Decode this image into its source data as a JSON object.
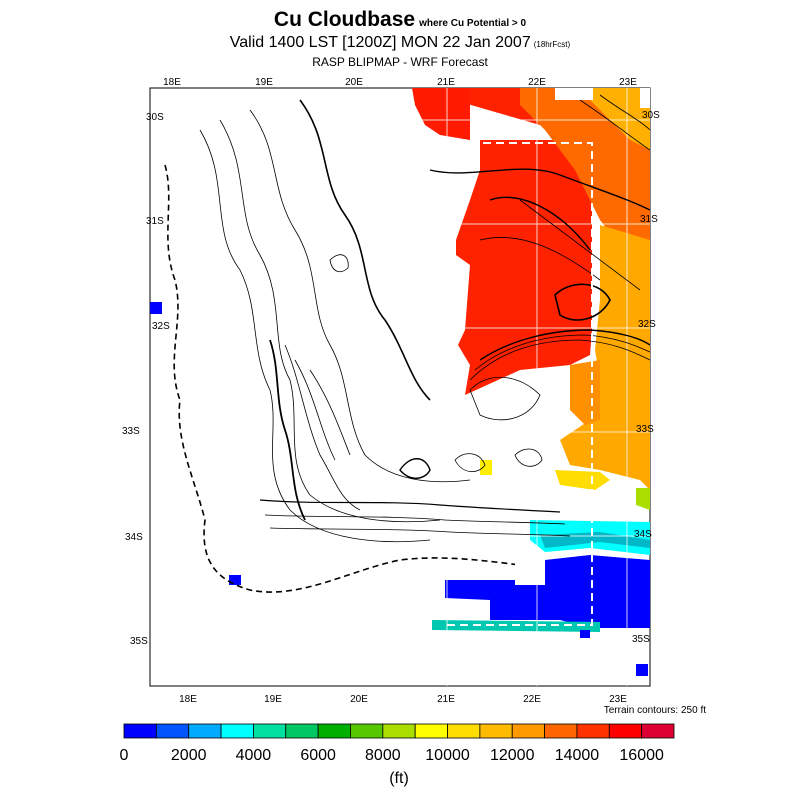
{
  "title": {
    "main": "Cu Cloudbase",
    "condition": "where Cu Potential > 0",
    "valid": "Valid 1400 LST [1200Z] MON 22 Jan 2007",
    "forecast_hours": "(18hrFcst)",
    "subtitle": "RASP BLIPMAP - WRF Forecast"
  },
  "map": {
    "top_lon_labels": [
      "18E",
      "19E",
      "20E",
      "21E",
      "22E",
      "23E"
    ],
    "bottom_lon_labels": [
      "18E",
      "19E",
      "20E",
      "21E",
      "22E",
      "23E"
    ],
    "left_lat_labels": [
      "30S",
      "31S",
      "32S",
      "33S",
      "34S",
      "35S"
    ],
    "right_lat_labels": [
      "30S",
      "31S",
      "32S",
      "33S",
      "34S",
      "35S"
    ],
    "terrain_note": "Terrain contours: 250 ft"
  },
  "colorbar": {
    "colors": [
      "#0000ff",
      "#0055ff",
      "#00aaff",
      "#00ffff",
      "#00e0a0",
      "#00c864",
      "#00b000",
      "#55c800",
      "#aadd00",
      "#ffff00",
      "#ffdd00",
      "#ffbb00",
      "#ff9900",
      "#ff6600",
      "#ff3300",
      "#ff0000",
      "#dd0033"
    ],
    "tick_labels": [
      "0",
      "2000",
      "4000",
      "6000",
      "8000",
      "10000",
      "12000",
      "14000",
      "16000"
    ],
    "unit": "(ft)"
  }
}
